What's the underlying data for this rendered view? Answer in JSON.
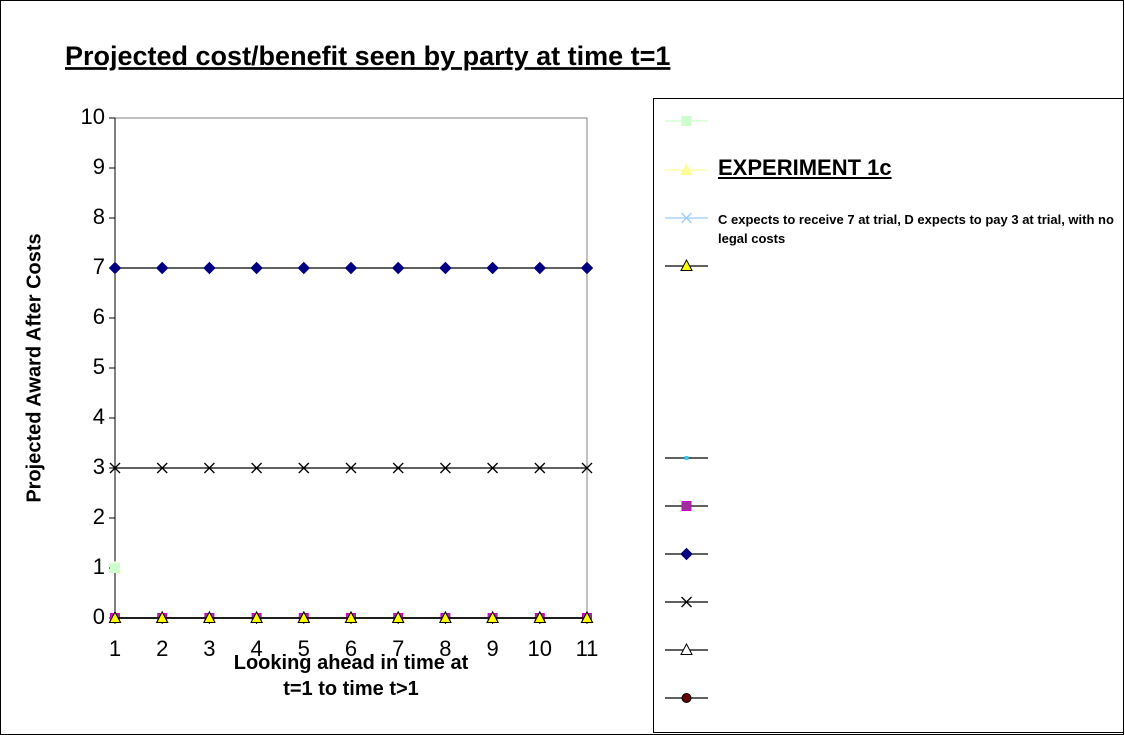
{
  "chart_data": {
    "type": "line",
    "title": "Projected cost/benefit seen by party at time t=1",
    "x_label": "Looking ahead in time at t=1 to time t>1",
    "y_label": "Projected Award After Costs",
    "categories": [
      "1",
      "2",
      "3",
      "4",
      "5",
      "6",
      "7",
      "8",
      "9",
      "10",
      "11"
    ],
    "ylim": [
      0,
      10
    ],
    "yticks": [
      0,
      1,
      2,
      3,
      4,
      5,
      6,
      7,
      8,
      9,
      10
    ],
    "series": [
      {
        "marker": "square",
        "marker_color": "#ccffcc",
        "values": [
          1,
          null,
          null,
          null,
          null,
          null,
          null,
          null,
          null,
          null,
          null
        ]
      },
      {
        "name": "EXPERIMENT  1c",
        "marker": "triangle",
        "marker_color": "#ffff99",
        "values": [
          1,
          null,
          null,
          null,
          null,
          null,
          null,
          null,
          null,
          null,
          null
        ]
      },
      {
        "name": "C expects to receive 7 at trial, D expects to pay 3 at trial, with no legal costs",
        "marker": "x",
        "marker_color": "#99ccff",
        "values": [
          1,
          null,
          null,
          null,
          null,
          null,
          null,
          null,
          null,
          null,
          null
        ]
      },
      {
        "marker": "triangle",
        "marker_color": "#ffff00",
        "color": "#000000",
        "values": [
          0,
          0,
          0,
          0,
          0,
          0,
          0,
          0,
          0,
          0,
          0
        ]
      },
      {
        "marker": "dot",
        "marker_color": "#33ccff",
        "color": "#000000",
        "values": [
          0,
          0,
          0,
          0,
          0,
          0,
          0,
          0,
          0,
          0,
          0
        ]
      },
      {
        "marker": "square",
        "marker_color": "#993399",
        "color": "#000000",
        "values": [
          0,
          0,
          0,
          0,
          0,
          0,
          0,
          0,
          0,
          0,
          0
        ]
      },
      {
        "marker": "diamond",
        "marker_color": "#000080",
        "color": "#000000",
        "values": [
          7,
          7,
          7,
          7,
          7,
          7,
          7,
          7,
          7,
          7,
          7
        ]
      },
      {
        "marker": "x",
        "marker_color": "#000000",
        "color": "#000000",
        "values": [
          3,
          3,
          3,
          3,
          3,
          3,
          3,
          3,
          3,
          3,
          3
        ]
      },
      {
        "marker": "triangle",
        "marker_color": "#ffffff",
        "color": "#000000",
        "values": [
          0,
          0,
          0,
          0,
          0,
          0,
          0,
          0,
          0,
          0,
          0
        ]
      },
      {
        "marker": "circle",
        "marker_color": "#660000",
        "color": "#000000",
        "values": [
          0,
          0,
          0,
          0,
          0,
          0,
          0,
          0,
          0,
          0,
          0
        ]
      }
    ]
  }
}
